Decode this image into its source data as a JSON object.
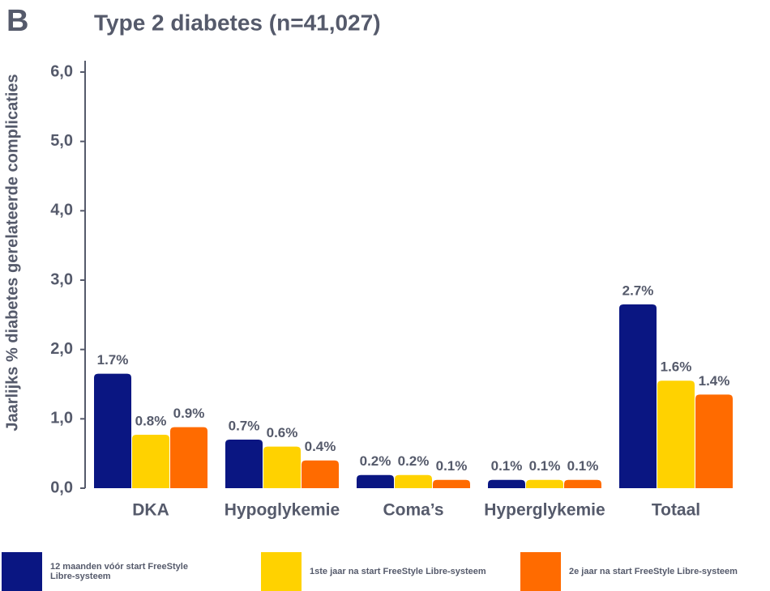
{
  "panel_label": "B",
  "chart_data": {
    "type": "bar",
    "title": "Type 2 diabetes (n=41,027)",
    "y_label": "Jaarlijks % diabetes gerelateerde complicaties",
    "categories": [
      "DKA",
      "Hypoglykemie",
      "Coma’s",
      "Hyperglykemie",
      "Totaal"
    ],
    "series": [
      {
        "name": "12 maanden vóór start FreeStyle Libre-systeem",
        "color": "#0a1682",
        "values": [
          1.65,
          0.7,
          0.19,
          0.12,
          2.65
        ],
        "value_labels": [
          "1.7%",
          "0.7%",
          "0.2%",
          "0.1%",
          "2.7%"
        ]
      },
      {
        "name": "1ste jaar na start FreeStyle Libre-systeem",
        "color": "#ffd200",
        "values": [
          0.77,
          0.6,
          0.19,
          0.12,
          1.55
        ],
        "value_labels": [
          "0.8%",
          "0.6%",
          "0.2%",
          "0.1%",
          "1.6%"
        ]
      },
      {
        "name": "2e jaar na start FreeStyle Libre-systeem",
        "color": "#ff6b00",
        "values": [
          0.88,
          0.4,
          0.12,
          0.12,
          1.35
        ],
        "value_labels": [
          "0.9%",
          "0.4%",
          "0.1%",
          "0.1%",
          "1.4%"
        ]
      }
    ],
    "ylim": [
      0,
      6
    ],
    "yticks": [
      {
        "value": 0,
        "label": "0,0"
      },
      {
        "value": 1,
        "label": "1,0"
      },
      {
        "value": 2,
        "label": "2,0"
      },
      {
        "value": 3,
        "label": "3,0"
      },
      {
        "value": 4,
        "label": "4,0"
      },
      {
        "value": 5,
        "label": "5,0"
      },
      {
        "value": 6,
        "label": "6,0"
      }
    ],
    "grid": false
  }
}
